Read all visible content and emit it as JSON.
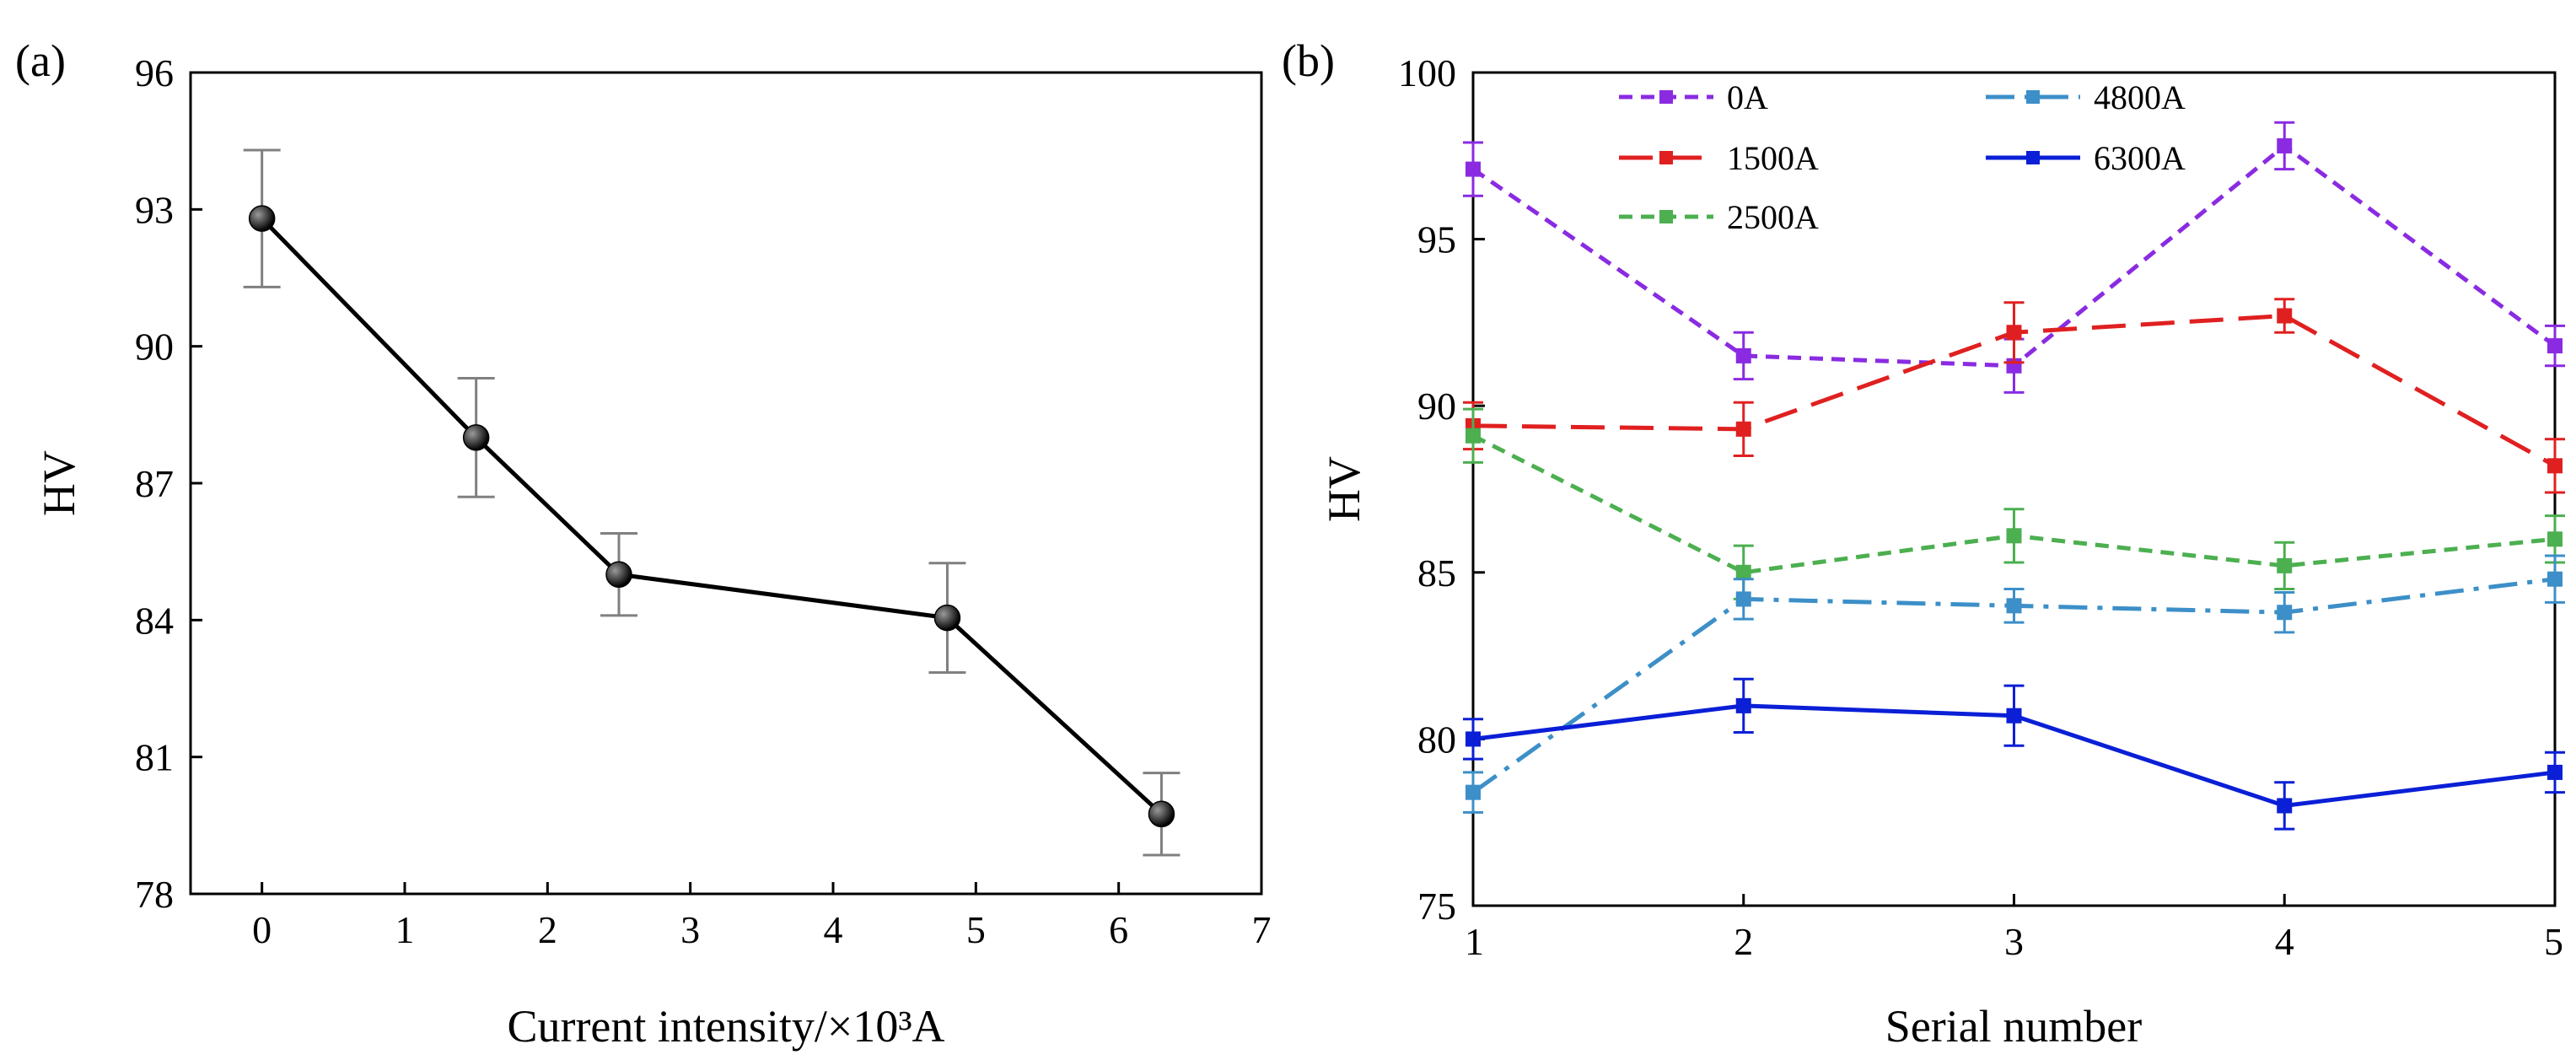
{
  "chart_data": [
    {
      "panel_label": "(a)",
      "type": "line",
      "xlabel": "Current intensity/×10³A",
      "ylabel": "HV",
      "xlim": [
        -0.5,
        7
      ],
      "ylim": [
        78,
        96
      ],
      "xticks": [
        0,
        1,
        2,
        3,
        4,
        5,
        6,
        7
      ],
      "yticks": [
        78,
        81,
        84,
        87,
        90,
        93,
        96
      ],
      "grid": false,
      "series": [
        {
          "name": "HV",
          "color": "#000000",
          "x": [
            0,
            1.5,
            2.5,
            4.8,
            6.3
          ],
          "y": [
            92.8,
            88.0,
            85.0,
            84.05,
            79.75
          ],
          "err": [
            1.5,
            1.3,
            0.9,
            1.2,
            0.9
          ]
        }
      ]
    },
    {
      "panel_label": "(b)",
      "type": "line",
      "xlabel": "Serial number",
      "ylabel": "HV",
      "xlim": [
        1,
        5
      ],
      "ylim": [
        75,
        100
      ],
      "xticks": [
        1,
        2,
        3,
        4,
        5
      ],
      "yticks": [
        75,
        80,
        85,
        90,
        95,
        100
      ],
      "grid": false,
      "legend": "top, two columns",
      "categories": [
        1,
        2,
        3,
        4,
        5
      ],
      "series": [
        {
          "name": "0A",
          "color": "#8a2be2",
          "dash": "short-dash",
          "values": [
            97.1,
            91.5,
            91.2,
            97.8,
            91.8
          ],
          "err": [
            0.8,
            0.7,
            0.8,
            0.7,
            0.6
          ]
        },
        {
          "name": "1500A",
          "color": "#e02020",
          "dash": "long-dash",
          "values": [
            89.4,
            89.3,
            92.2,
            92.7,
            88.2
          ],
          "err": [
            0.7,
            0.8,
            0.9,
            0.5,
            0.8
          ]
        },
        {
          "name": "2500A",
          "color": "#4caf50",
          "dash": "short-dash",
          "values": [
            89.1,
            85.0,
            86.1,
            85.2,
            86.0
          ],
          "err": [
            0.8,
            0.8,
            0.8,
            0.7,
            0.7
          ]
        },
        {
          "name": "4800A",
          "color": "#3c8fc8",
          "dash": "dash-dot",
          "values": [
            78.4,
            84.2,
            84.0,
            83.8,
            84.8
          ],
          "err": [
            0.6,
            0.6,
            0.5,
            0.6,
            0.7
          ]
        },
        {
          "name": "6300A",
          "color": "#0a1fd6",
          "dash": "solid",
          "values": [
            80.0,
            81.0,
            80.7,
            78.0,
            79.0
          ],
          "err": [
            0.6,
            0.8,
            0.9,
            0.7,
            0.6
          ]
        }
      ]
    }
  ]
}
